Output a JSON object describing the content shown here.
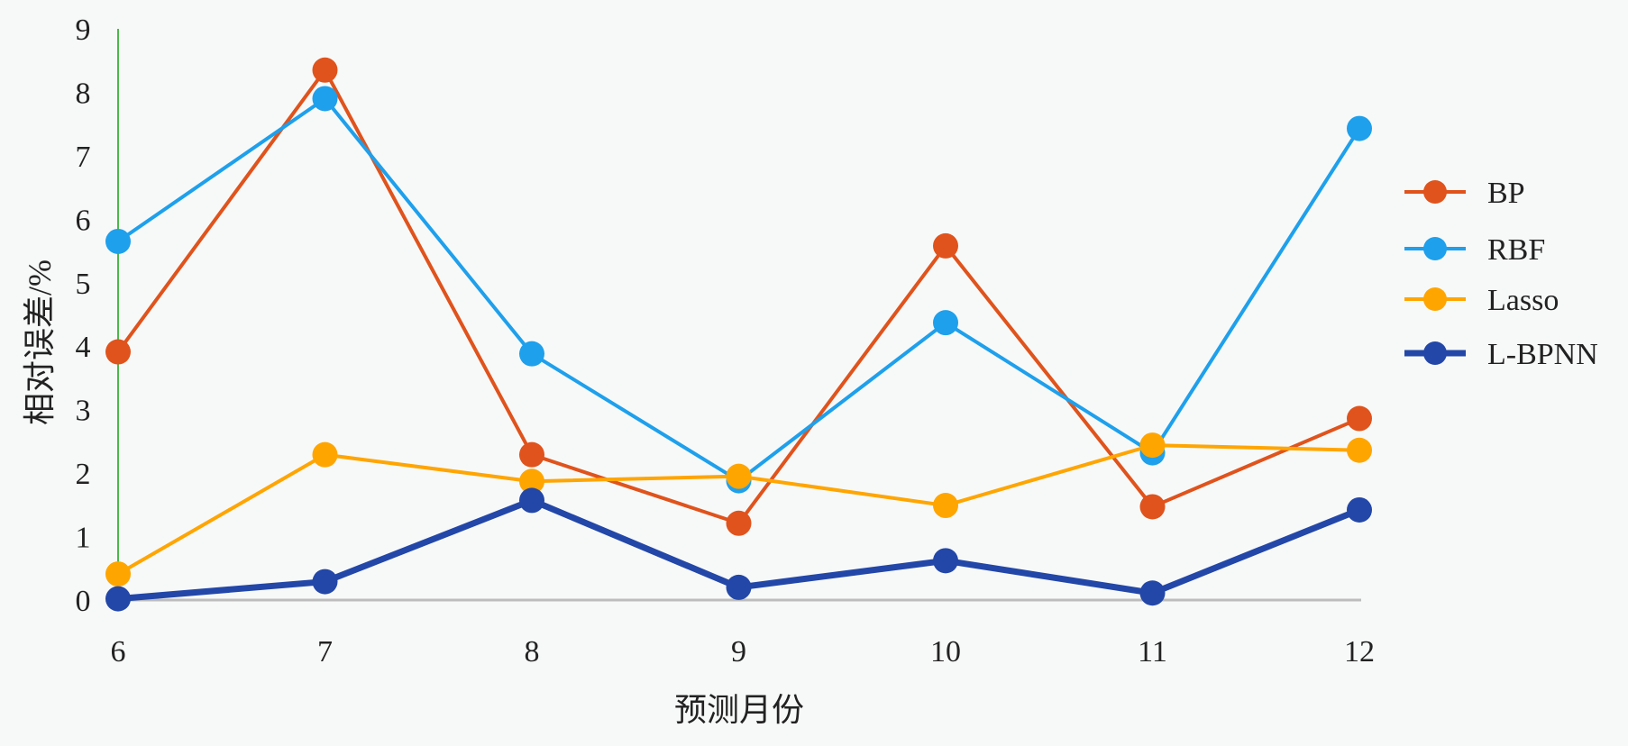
{
  "chart_data": {
    "type": "line",
    "title": "",
    "xlabel": "预测月份",
    "ylabel": "相对误差/%",
    "x": [
      6,
      7,
      8,
      9,
      10,
      11,
      12
    ],
    "xticks": [
      "6",
      "7",
      "8",
      "9",
      "10",
      "11",
      "12"
    ],
    "yticks": [
      "0",
      "1",
      "2",
      "3",
      "4",
      "5",
      "6",
      "7",
      "8",
      "9"
    ],
    "ylim": [
      0,
      9
    ],
    "grid": false,
    "legend_position": "right",
    "series": [
      {
        "name": "BP",
        "color": "#e0531c",
        "values": [
          3.91,
          8.35,
          2.29,
          1.21,
          5.58,
          1.47,
          2.86
        ]
      },
      {
        "name": "RBF",
        "color": "#1ea0ec",
        "values": [
          5.65,
          7.9,
          3.88,
          1.88,
          4.37,
          2.32,
          7.43
        ]
      },
      {
        "name": "Lasso",
        "color": "#ffa500",
        "values": [
          0.41,
          2.29,
          1.87,
          1.95,
          1.49,
          2.44,
          2.36
        ]
      },
      {
        "name": "L-BPNN",
        "color": "#2347a8",
        "values": [
          0.02,
          0.29,
          1.57,
          0.2,
          0.62,
          0.11,
          1.42
        ]
      }
    ]
  }
}
